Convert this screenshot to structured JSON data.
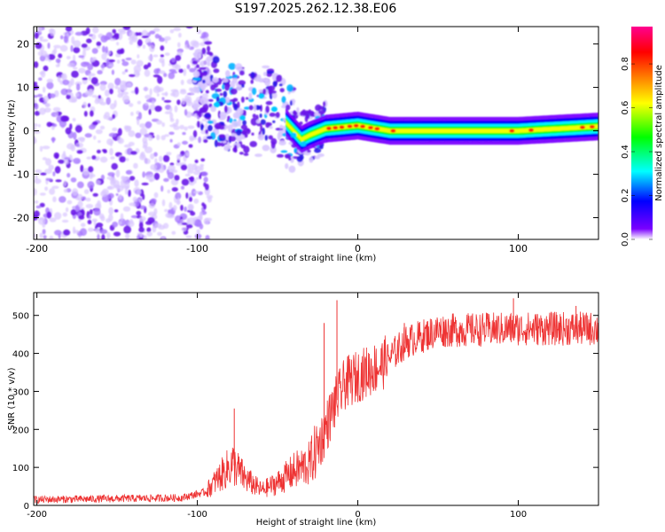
{
  "title": "S197.2025.262.12.38.E06",
  "chart_data": [
    {
      "type": "heatmap",
      "title": "S197.2025.262.12.38.E06",
      "xlabel": "Height of straight line (km)",
      "ylabel": "Frequency (Hz)",
      "xlim": [
        -202,
        150
      ],
      "ylim": [
        -25,
        24
      ],
      "xticks": [
        -200,
        -100,
        0,
        100
      ],
      "yticks": [
        -20,
        -10,
        0,
        10,
        20
      ],
      "colorbar": {
        "label": "Normalized spectral amplitude",
        "range": [
          0,
          0.97
        ],
        "ticks": [
          0.0,
          0.2,
          0.4,
          0.6,
          0.8
        ],
        "tick_labels": [
          "0.0",
          "0.2",
          "0.4",
          "0.6",
          "0.8"
        ],
        "colormap": [
          "#ffffff",
          "#7a00ff",
          "#0000ff",
          "#00ffff",
          "#00ff00",
          "#ffff00",
          "#ff8000",
          "#ff0000",
          "#ff0090"
        ]
      },
      "ridge": [
        {
          "x": -95,
          "y": 9
        },
        {
          "x": -85,
          "y": 6
        },
        {
          "x": -75,
          "y": 5
        },
        {
          "x": -65,
          "y": 4
        },
        {
          "x": -55,
          "y": 5
        },
        {
          "x": -45,
          "y": 2
        },
        {
          "x": -35,
          "y": -2
        },
        {
          "x": -30,
          "y": -1
        },
        {
          "x": -20,
          "y": 0.5
        },
        {
          "x": 0,
          "y": 1.2
        },
        {
          "x": 20,
          "y": 0
        },
        {
          "x": 60,
          "y": 0
        },
        {
          "x": 100,
          "y": 0
        },
        {
          "x": 150,
          "y": 1
        }
      ],
      "noise_region_x": [
        -202,
        -100
      ]
    },
    {
      "type": "line",
      "xlabel": "Height of straight line (km)",
      "ylabel": "SNR (10 * v/v)",
      "xlim": [
        -202,
        150
      ],
      "ylim": [
        0,
        560
      ],
      "xticks": [
        -200,
        -100,
        0,
        100
      ],
      "yticks": [
        0,
        100,
        200,
        300,
        400,
        500
      ],
      "series": [
        {
          "name": "SNR",
          "color": "#ee3333",
          "trend": [
            {
              "x": -202,
              "y": 15
            },
            {
              "x": -110,
              "y": 20
            },
            {
              "x": -95,
              "y": 35
            },
            {
              "x": -85,
              "y": 80
            },
            {
              "x": -78,
              "y": 110
            },
            {
              "x": -70,
              "y": 70
            },
            {
              "x": -60,
              "y": 40
            },
            {
              "x": -50,
              "y": 60
            },
            {
              "x": -40,
              "y": 90
            },
            {
              "x": -30,
              "y": 110
            },
            {
              "x": -22,
              "y": 180
            },
            {
              "x": -15,
              "y": 260
            },
            {
              "x": -8,
              "y": 320
            },
            {
              "x": 0,
              "y": 340
            },
            {
              "x": 15,
              "y": 370
            },
            {
              "x": 30,
              "y": 430
            },
            {
              "x": 50,
              "y": 460
            },
            {
              "x": 100,
              "y": 465
            },
            {
              "x": 150,
              "y": 465
            }
          ],
          "spikes": [
            {
              "x": -77,
              "y": 255
            },
            {
              "x": -21,
              "y": 480
            },
            {
              "x": -13,
              "y": 540
            },
            {
              "x": 29,
              "y": 480
            },
            {
              "x": 97,
              "y": 545
            },
            {
              "x": 136,
              "y": 525
            }
          ]
        }
      ]
    }
  ]
}
